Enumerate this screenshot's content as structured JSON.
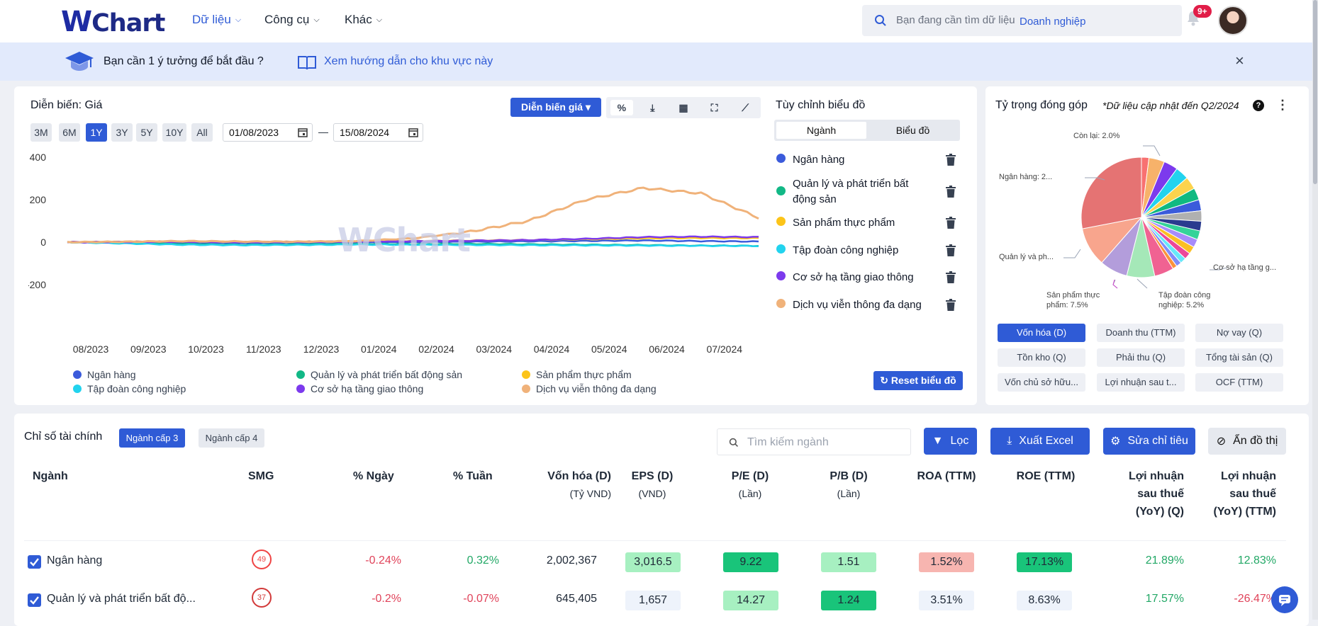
{
  "header": {
    "logo_w": "W",
    "logo_rest": "Chart",
    "nav": [
      {
        "label": "Dữ liệu",
        "active": true
      },
      {
        "label": "Công cụ",
        "active": false
      },
      {
        "label": "Khác",
        "active": false
      }
    ],
    "search_placeholder": "Bạn đang cần tìm dữ liệu",
    "search_scope": "Doanh nghiệp",
    "notif_badge": "9+"
  },
  "banner": {
    "idea_text": "Bạn cần 1 ý tưởng để bắt đầu ?",
    "guide_text": "Xem hướng dẫn cho khu vực này",
    "close": "×"
  },
  "chart_panel": {
    "title": "Diễn biến: Giá",
    "range_buttons": [
      "3M",
      "6M",
      "1Y",
      "3Y",
      "5Y",
      "10Y",
      "All"
    ],
    "active_range": "1Y",
    "date_from": "01/08/2023",
    "date_sep": "—",
    "date_to": "15/08/2024",
    "mode_dropdown": "Diễn biến giá",
    "percent_tool": "%",
    "reset_label": "Reset biểu đồ",
    "watermark_w": "W",
    "watermark_rest": "Chart"
  },
  "customize": {
    "title": "Tùy chỉnh biểu đồ",
    "tabs": [
      "Ngành",
      "Biểu đồ"
    ],
    "active_tab": "Ngành",
    "items": [
      {
        "label": "Ngân hàng",
        "color": "#3b5bdb"
      },
      {
        "label": "Quản lý và phát triển bất động sản",
        "color": "#12b886"
      },
      {
        "label": "Sản phẩm thực phẩm",
        "color": "#fcc419"
      },
      {
        "label": "Tập đoàn công nghiệp",
        "color": "#22d3ee"
      },
      {
        "label": "Cơ sở hạ tầng giao thông",
        "color": "#7c3aed"
      },
      {
        "label": "Dịch vụ viễn thông đa dạng",
        "color": "#f0b27a"
      }
    ]
  },
  "chart_data": {
    "type": "line",
    "title": "",
    "x": [
      "08/2023",
      "09/2023",
      "10/2023",
      "11/2023",
      "12/2023",
      "01/2024",
      "02/2024",
      "03/2024",
      "04/2024",
      "05/2024",
      "06/2024",
      "07/2024",
      "08/2024"
    ],
    "x_ticks": [
      "08/2023",
      "09/2023",
      "10/2023",
      "11/2023",
      "12/2023",
      "01/2024",
      "02/2024",
      "03/2024",
      "04/2024",
      "05/2024",
      "06/2024",
      "07/2024"
    ],
    "y_ticks": [
      "400",
      "200",
      "0",
      "-200"
    ],
    "ylim": [
      -200,
      400
    ],
    "xlabel": "",
    "ylabel": "",
    "grid": false,
    "legend": "bottom",
    "series": [
      {
        "name": "Ngân hàng",
        "color": "#3b5bdb",
        "values": [
          0,
          -2,
          -3,
          -5,
          -4,
          -2,
          0,
          2,
          4,
          6,
          8,
          5,
          3
        ]
      },
      {
        "name": "Quản lý và phát triển bất động sản",
        "color": "#12b886",
        "values": [
          0,
          -4,
          -8,
          -12,
          -10,
          -8,
          -9,
          -8,
          -10,
          -12,
          -14,
          -16,
          -17
        ]
      },
      {
        "name": "Sản phẩm thực phẩm",
        "color": "#fcc419",
        "values": [
          0,
          2,
          3,
          1,
          2,
          4,
          6,
          8,
          10,
          14,
          18,
          20,
          19
        ]
      },
      {
        "name": "Tập đoàn công nghiệp",
        "color": "#22d3ee",
        "values": [
          0,
          -6,
          -12,
          -14,
          -13,
          -11,
          -12,
          -13,
          -14,
          -15,
          -16,
          -17,
          -18
        ]
      },
      {
        "name": "Cơ sở hạ tầng giao thông",
        "color": "#7c3aed",
        "values": [
          0,
          1,
          2,
          0,
          1,
          3,
          5,
          7,
          10,
          16,
          24,
          26,
          24
        ]
      },
      {
        "name": "Dịch vụ viễn thông đa dạng",
        "color": "#f0b27a",
        "values": [
          0,
          2,
          5,
          3,
          2,
          5,
          18,
          50,
          100,
          200,
          255,
          230,
          115
        ]
      }
    ]
  },
  "pie_panel": {
    "title": "Tỷ trọng đóng góp",
    "note": "*Dữ liệu cập nhật đến Q2/2024",
    "help": "?",
    "labels": {
      "con_lai": "Còn lại: 2.0%",
      "ngan_hang": "Ngân hàng: 2...",
      "quan_ly": "Quản lý và ph...",
      "san_pham_1": "Sản phẩm thực",
      "san_pham_2": "phẩm: 7.5%",
      "tap_doan_1": "Tập đoàn công",
      "tap_doan_2": "nghiệp: 5.2%",
      "co_so": "Cơ sở hạ tầng g..."
    },
    "metric_buttons": [
      "Vốn hóa (D)",
      "Doanh thu (TTM)",
      "Nợ vay (Q)",
      "Tồn kho (Q)",
      "Phải thu (Q)",
      "Tổng tài sản (Q)",
      "Vốn chủ sở hữu...",
      "Lợi nhuận sau t...",
      "OCF (TTM)"
    ],
    "active_metric": "Vốn hóa (D)"
  },
  "pie_data": {
    "type": "pie",
    "slices": [
      {
        "name": "Ngân hàng",
        "value": 28.0,
        "color": "#e57373"
      },
      {
        "name": "Quản lý và phát triển bất động sản",
        "value": 10.5,
        "color": "#f8a58d"
      },
      {
        "name": "Cơ sở hạ tầng giao thông",
        "value": 7.5,
        "color": "#b39ddb"
      },
      {
        "name": "Sản phẩm thực phẩm",
        "value": 7.5,
        "color": "#a5e8b8"
      },
      {
        "name": "Tập đoàn công nghiệp",
        "value": 5.2,
        "color": "#f06292"
      },
      {
        "name": "",
        "value": 4.2,
        "color": "#f7b26a"
      },
      {
        "name": "",
        "value": 3.8,
        "color": "#7c3aed"
      },
      {
        "name": "",
        "value": 3.6,
        "color": "#22d3ee"
      },
      {
        "name": "",
        "value": 3.4,
        "color": "#fcd34d"
      },
      {
        "name": "",
        "value": 3.2,
        "color": "#10b981"
      },
      {
        "name": "",
        "value": 3.0,
        "color": "#3b5bdb"
      },
      {
        "name": "",
        "value": 2.8,
        "color": "#b0b0b0"
      },
      {
        "name": "",
        "value": 2.6,
        "color": "#2a3b8f"
      },
      {
        "name": "",
        "value": 2.4,
        "color": "#34d399"
      },
      {
        "name": "",
        "value": 2.2,
        "color": "#a78bfa"
      },
      {
        "name": "",
        "value": 2.0,
        "color": "#fbbf24"
      },
      {
        "name": "",
        "value": 1.8,
        "color": "#ec4899"
      },
      {
        "name": "",
        "value": 1.6,
        "color": "#67e8f9"
      },
      {
        "name": "",
        "value": 1.4,
        "color": "#818cf8"
      },
      {
        "name": "",
        "value": 1.2,
        "color": "#fb923c"
      },
      {
        "name": "Còn lại",
        "value": 2.0,
        "color": "#f87171"
      }
    ]
  },
  "table": {
    "title": "Chỉ số tài chính",
    "level_tabs": [
      "Ngành cấp 3",
      "Ngành cấp 4"
    ],
    "active_level": "Ngành cấp 3",
    "search_placeholder": "Tìm kiếm ngành",
    "filter_label": "Lọc",
    "export_label": "Xuất Excel",
    "edit_label": "Sửa chỉ tiêu",
    "hide_label": "Ẩn đồ thị",
    "columns": [
      {
        "title": "Ngành",
        "sub": ""
      },
      {
        "title": "SMG",
        "sub": ""
      },
      {
        "title": "% Ngày",
        "sub": ""
      },
      {
        "title": "% Tuần",
        "sub": ""
      },
      {
        "title": "Vốn hóa (D)",
        "sub": "(Tỷ VND)"
      },
      {
        "title": "EPS (D)",
        "sub": "(VND)"
      },
      {
        "title": "P/E (D)",
        "sub": "(Lần)"
      },
      {
        "title": "P/B (D)",
        "sub": "(Lần)"
      },
      {
        "title": "ROA (TTM)",
        "sub": ""
      },
      {
        "title": "ROE (TTM)",
        "sub": ""
      },
      {
        "title": "Lợi nhuận sau thuế (YoY) (Q)",
        "sub": ""
      },
      {
        "title": "Lợi nhuận sau thuế (YoY) (TTM)",
        "sub": ""
      }
    ],
    "rows": [
      {
        "name": "Ngân hàng",
        "smg": "49",
        "day": "-0.24%",
        "week": "0.32%",
        "cap": "2,002,367",
        "eps": "3,016.5",
        "pe": "9.22",
        "pb": "1.51",
        "roa": "1.52%",
        "roe": "17.13%",
        "np_q": "21.89%",
        "np_ttm": "12.83%"
      },
      {
        "name": "Quản lý và phát triển bất độ...",
        "smg": "37",
        "day": "-0.2%",
        "week": "-0.07%",
        "cap": "645,405",
        "eps": "1,657",
        "pe": "14.27",
        "pb": "1.24",
        "roa": "3.51%",
        "roe": "8.63%",
        "np_q": "17.57%",
        "np_ttm": "-26.47%"
      }
    ]
  }
}
